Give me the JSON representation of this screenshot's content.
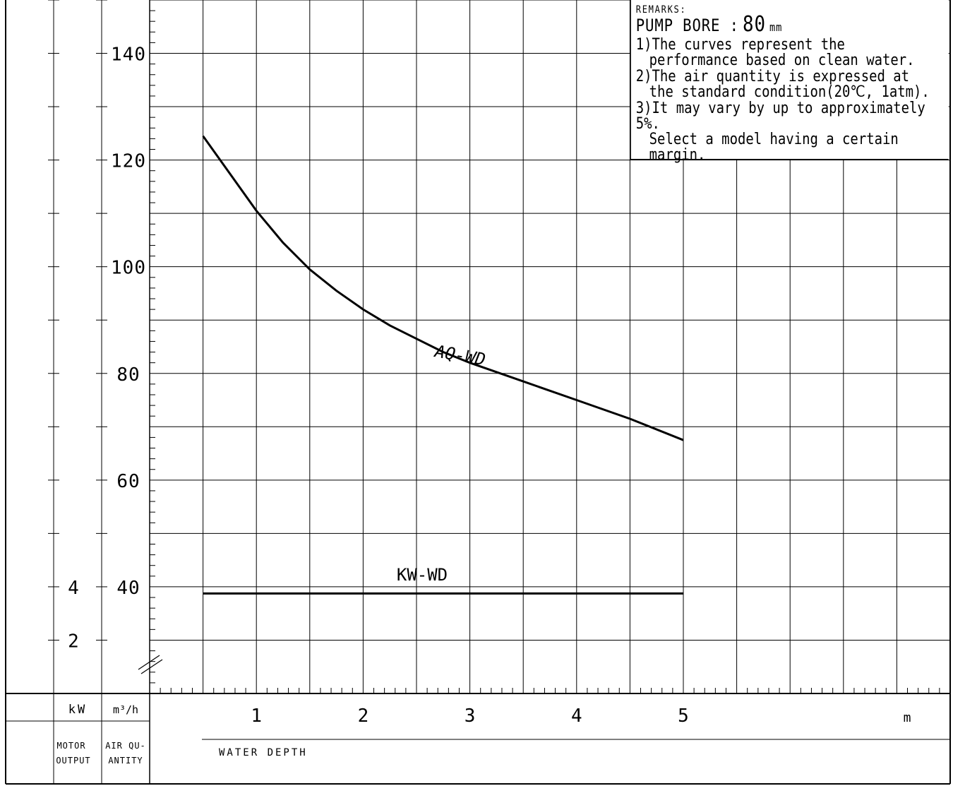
{
  "remarks": {
    "title": "REMARKS:",
    "bore_label": "PUMP BORE :",
    "bore_value": "80",
    "bore_unit": "mm",
    "notes": [
      {
        "num": "1)",
        "line1": "The curves represent the",
        "line2": "performance based on clean water."
      },
      {
        "num": "2)",
        "line1": "The air quantity is expressed at",
        "line2": "the standard condition(20℃, 1atm)."
      },
      {
        "num": "3)",
        "line1": "It may vary by up to approximately 5%.",
        "line2": "Select a model having a certain margin."
      }
    ]
  },
  "axes": {
    "kw_unit": "kW",
    "aq_unit": "m³/h",
    "kw_caption": [
      "MOTOR",
      "OUTPUT"
    ],
    "aq_caption": [
      "AIR QU-",
      "ANTITY"
    ],
    "x_label": "WATER DEPTH",
    "x_unit": "m"
  },
  "chart_data": {
    "type": "line",
    "x": [
      0.5,
      0.75,
      1.0,
      1.25,
      1.5,
      1.75,
      2.0,
      2.25,
      2.5,
      2.75,
      3.0,
      3.5,
      4.0,
      4.5,
      5.0
    ],
    "series": [
      {
        "name": "AQ-WD",
        "axis": "air_quantity",
        "values": [
          124.5,
          117.5,
          110.5,
          104.5,
          99.5,
          95.5,
          92,
          89,
          86.5,
          84,
          82,
          78.5,
          75,
          71.5,
          67.5
        ]
      },
      {
        "name": "KW-WD",
        "axis": "motor_output",
        "values": [
          3.75,
          3.75,
          3.75,
          3.75,
          3.75,
          3.75,
          3.75,
          3.75,
          3.75,
          3.75,
          3.75,
          3.75,
          3.75,
          3.75,
          3.75
        ]
      }
    ],
    "x_ticks": [
      1,
      2,
      3,
      4,
      5
    ],
    "xlim": [
      0,
      7.5
    ],
    "aq_ticks": [
      40,
      60,
      80,
      100,
      120,
      140
    ],
    "aq_lim": [
      20,
      150
    ],
    "kw_ticks": [
      2,
      4
    ],
    "kw_lim": [
      0,
      4
    ],
    "grid": true,
    "axis_break": true
  }
}
